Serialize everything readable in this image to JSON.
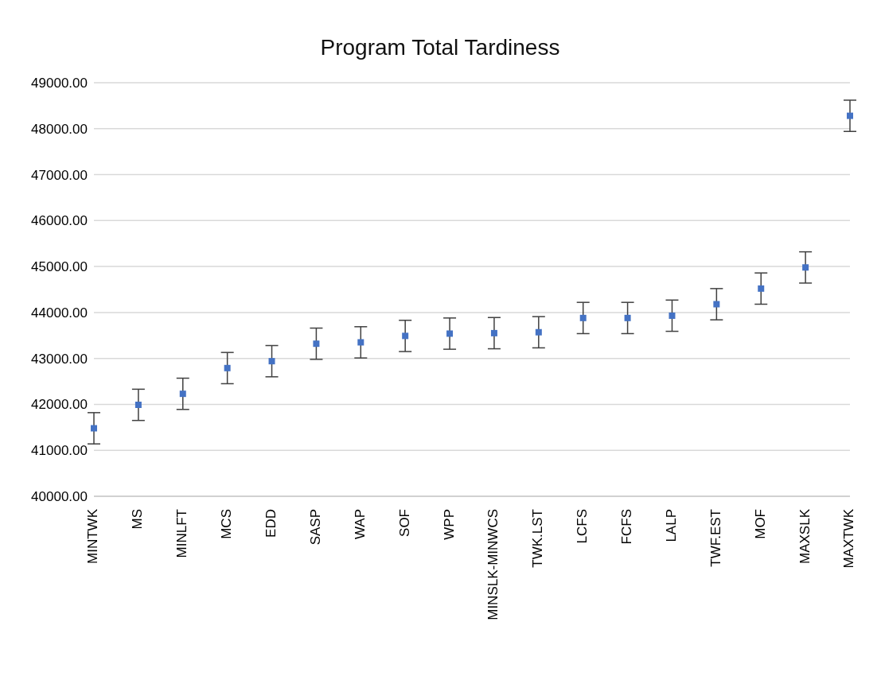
{
  "chart_data": {
    "type": "scatter",
    "title": "Program Total Tardiness",
    "categories": [
      "MINTWK",
      "MS",
      "MINLFT",
      "MCS",
      "EDD",
      "SASP",
      "WAP",
      "SOF",
      "WPP",
      "MINSLK-MINWCS",
      "TWK.LST",
      "LCFS",
      "FCFS",
      "LALP",
      "TWF.EST",
      "MOF",
      "MAXSLK",
      "MAXTWK"
    ],
    "values": [
      41480,
      41990,
      42230,
      42790,
      42940,
      43320,
      43350,
      43490,
      43540,
      43550,
      43570,
      43880,
      43880,
      43930,
      44180,
      44520,
      44980,
      48280
    ],
    "errors": [
      340,
      340,
      340,
      340,
      340,
      340,
      340,
      340,
      340,
      340,
      340,
      340,
      340,
      340,
      340,
      340,
      340,
      340
    ],
    "color": "#4472c4",
    "marker": "square",
    "grid": "y",
    "legend": false,
    "ylim": [
      40000,
      49000
    ],
    "yticks": [
      {
        "value": 40000,
        "label": "40000.00"
      },
      {
        "value": 41000,
        "label": "41000.00"
      },
      {
        "value": 42000,
        "label": "42000.00"
      },
      {
        "value": 43000,
        "label": "43000.00"
      },
      {
        "value": 44000,
        "label": "44000.00"
      },
      {
        "value": 45000,
        "label": "45000.00"
      },
      {
        "value": 46000,
        "label": "46000.00"
      },
      {
        "value": 47000,
        "label": "47000.00"
      },
      {
        "value": 48000,
        "label": "48000.00"
      },
      {
        "value": 49000,
        "label": "49000.00"
      }
    ]
  }
}
